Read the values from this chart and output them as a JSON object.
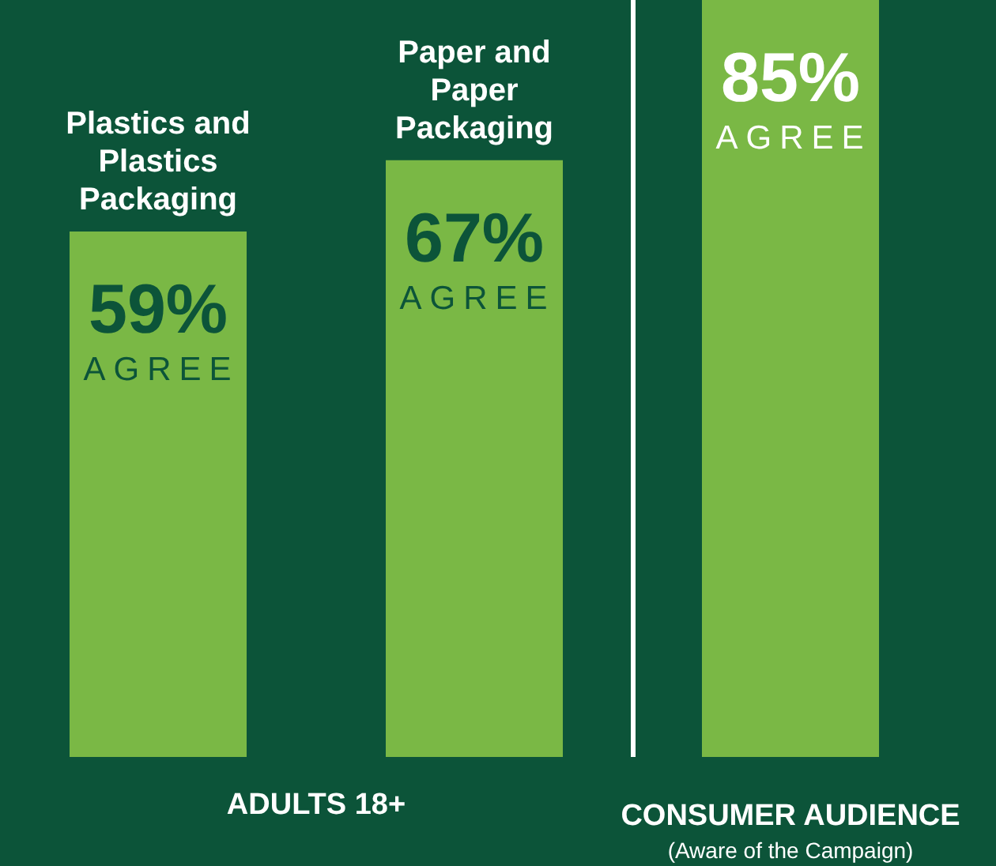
{
  "chart_data": {
    "type": "bar",
    "categories": [
      "Plastics and Plastics Packaging",
      "Paper and Paper Packaging",
      null
    ],
    "values": [
      59,
      67,
      85
    ],
    "color": "#7ab845",
    "ylim": [
      0,
      85
    ],
    "value_labels": [
      "59% AGREE",
      "67% AGREE",
      "85% AGREE"
    ],
    "annotations": [
      "ADULTS 18+",
      "CONSUMER AUDIENCE",
      "(Aware of the Campaign)"
    ],
    "legend": false
  }
}
